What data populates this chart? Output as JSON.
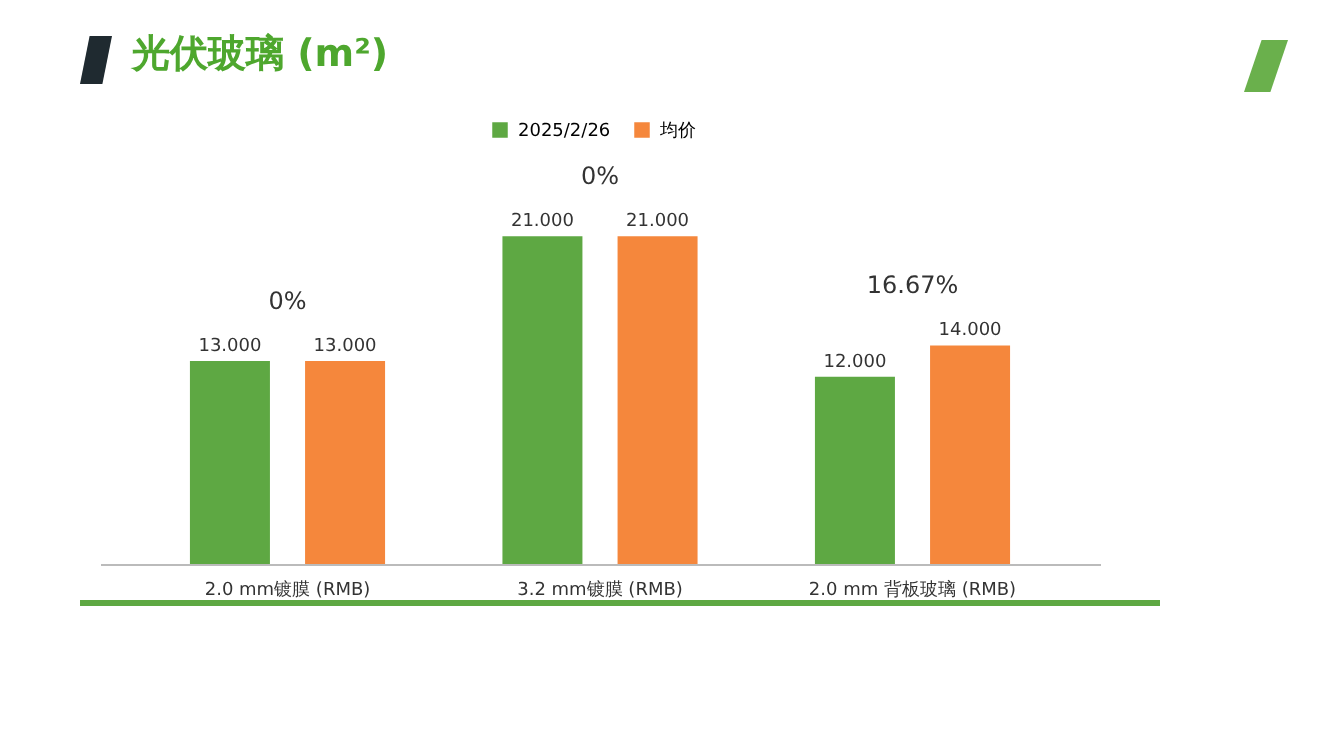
{
  "chart_data": {
    "type": "bar",
    "title": "光伏玻璃 (m²)",
    "categories": [
      "2.0 mm镀膜 (RMB)",
      "3.2 mm镀膜 (RMB)",
      "2.0 mm 背板玻璃 (RMB)"
    ],
    "series": [
      {
        "name": "2025/2/26",
        "color": "#5ea843",
        "values": [
          13,
          21,
          12
        ],
        "value_labels": [
          "13.000",
          "21.000",
          "12.000"
        ]
      },
      {
        "name": "均价",
        "color": "#f5873c",
        "values": [
          13,
          21,
          14
        ],
        "value_labels": [
          "13.000",
          "21.000",
          "14.000"
        ]
      }
    ],
    "annotations": [
      "0%",
      "0%",
      "16.67%"
    ],
    "legend": "top",
    "grid": false
  }
}
